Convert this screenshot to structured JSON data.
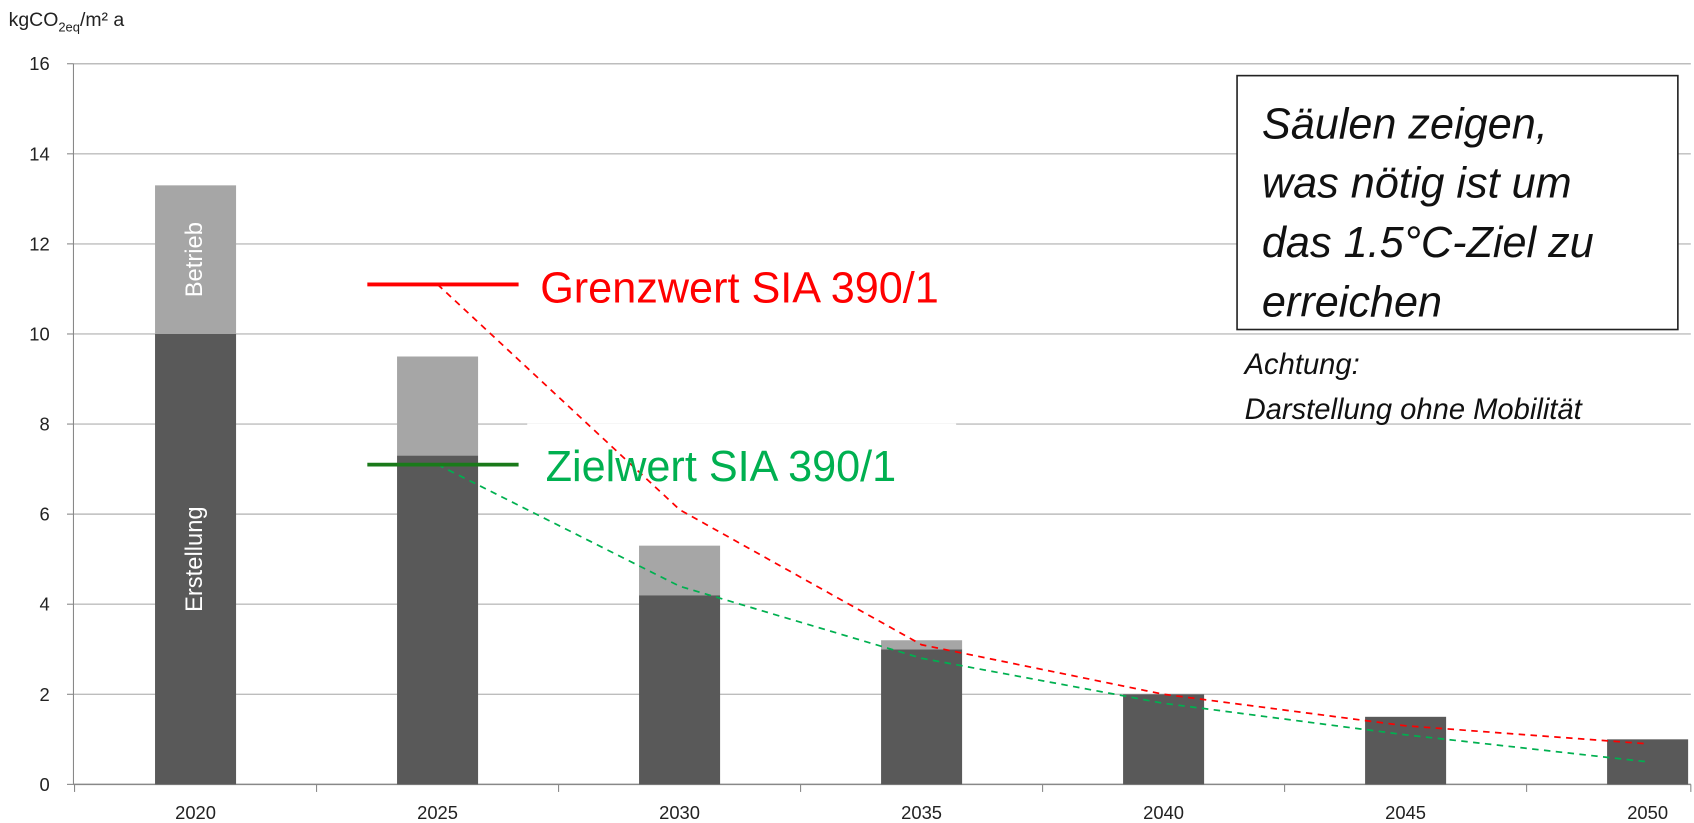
{
  "chart_data": {
    "type": "bar",
    "stacked": true,
    "y_label": [
      "kgCO",
      "2eq",
      "/m² a"
    ],
    "categories": [
      "2020",
      "2025",
      "2030",
      "2035",
      "2040",
      "2045",
      "2050"
    ],
    "series": [
      {
        "name": "Erstellung",
        "color": "#595959",
        "values": [
          10,
          7.3,
          4.2,
          3.0,
          2.0,
          1.5,
          1.0
        ]
      },
      {
        "name": "Betrieb",
        "color": "#a6a6a6",
        "values": [
          3.3,
          2.2,
          1.1,
          0.2,
          0,
          0,
          0
        ]
      }
    ],
    "lines": [
      {
        "name": "Grenzwert SIA 390/1",
        "color": "#ff0000",
        "values": [
          null,
          11.1,
          6.1,
          3.1,
          2.0,
          1.3,
          0.9
        ]
      },
      {
        "name": "Zielwert SIA 390/1",
        "color": "#00b050",
        "values": [
          null,
          7.1,
          4.4,
          2.8,
          1.8,
          1.1,
          0.5
        ]
      }
    ],
    "ylim": [
      0,
      16
    ],
    "yticks": [
      0,
      2,
      4,
      6,
      8,
      10,
      12,
      14,
      16
    ],
    "grid": true,
    "annotation_box": [
      "Säulen zeigen,",
      "was nötig ist um",
      "das 1.5°C-Ziel zu",
      "erreichen"
    ],
    "note": [
      "Achtung:",
      "Darstellung ohne Mobilität"
    ]
  }
}
